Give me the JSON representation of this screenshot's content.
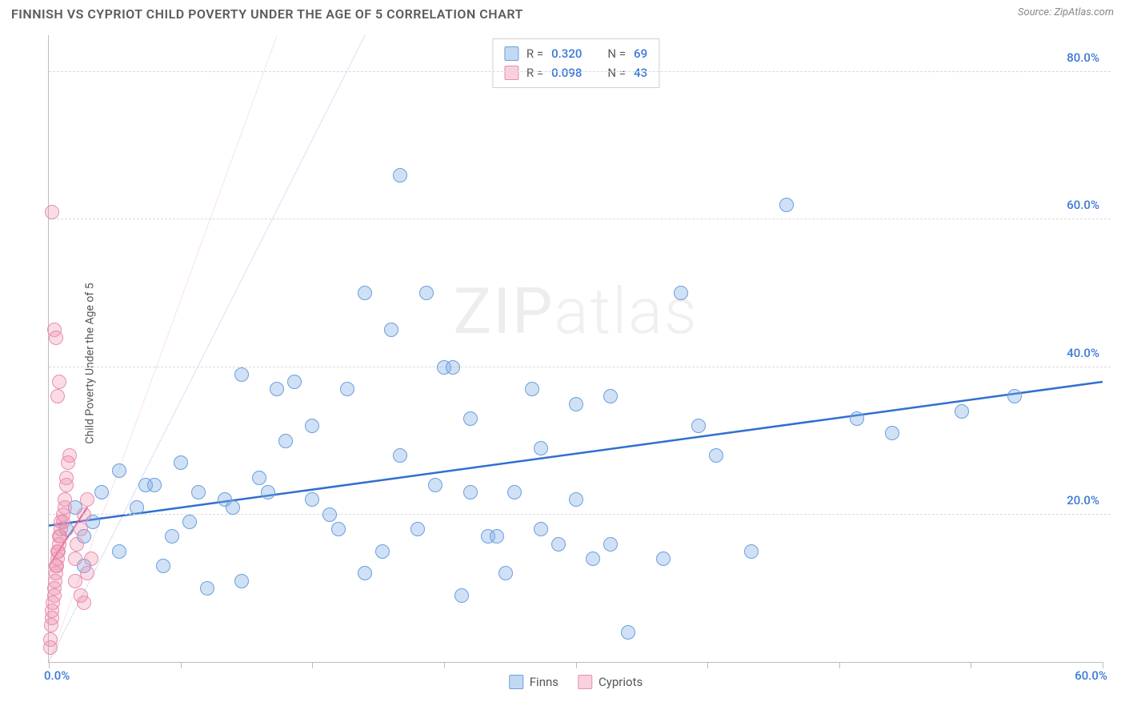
{
  "title": "FINNISH VS CYPRIOT CHILD POVERTY UNDER THE AGE OF 5 CORRELATION CHART",
  "source_label": "Source: ",
  "source_name": "ZipAtlas.com",
  "ylabel": "Child Poverty Under the Age of 5",
  "watermark_a": "ZIP",
  "watermark_b": "atlas",
  "chart": {
    "type": "scatter",
    "background_color": "#ffffff",
    "grid_color": "#d9d9d9",
    "axis_color": "#bdbdbd",
    "xlim": [
      0,
      60
    ],
    "ylim": [
      0,
      85
    ],
    "x_ticks": [
      0,
      7.5,
      15,
      22.5,
      30,
      37.5,
      45,
      52.5,
      60
    ],
    "y_gridlines": [
      20,
      40,
      60,
      80
    ],
    "x_axis_labels": {
      "min": "0.0%",
      "max": "60.0%"
    },
    "y_axis_labels": [
      "20.0%",
      "40.0%",
      "60.0%",
      "80.0%"
    ],
    "axis_label_color": "#3b78d8",
    "axis_label_fontsize": 15,
    "marker_size": 18,
    "series": [
      {
        "name": "Finns",
        "color_fill": "rgba(120,170,230,0.35)",
        "color_stroke": "#6b9ede",
        "r_label": "R = ",
        "r_value": "0.320",
        "n_label": "N = ",
        "n_value": "69",
        "trend": {
          "x1": 0,
          "y1": 18.5,
          "x2": 60,
          "y2": 38,
          "color": "#2f6fd0",
          "width": 2.5,
          "dash": "none"
        },
        "diag": {
          "x1": 0,
          "y1": 0,
          "x2": 18,
          "y2": 85,
          "color": "#a9c5ec",
          "width": 1,
          "dash": "5,5"
        },
        "points": [
          [
            1,
            18
          ],
          [
            1.5,
            21
          ],
          [
            2,
            13
          ],
          [
            2,
            17
          ],
          [
            2.5,
            19
          ],
          [
            3,
            23
          ],
          [
            4,
            15
          ],
          [
            4,
            26
          ],
          [
            5,
            21
          ],
          [
            5.5,
            24
          ],
          [
            6,
            24
          ],
          [
            6.5,
            13
          ],
          [
            7,
            17
          ],
          [
            7.5,
            27
          ],
          [
            8,
            19
          ],
          [
            8.5,
            23
          ],
          [
            9,
            10
          ],
          [
            10,
            22
          ],
          [
            10.5,
            21
          ],
          [
            11,
            11
          ],
          [
            11,
            39
          ],
          [
            12,
            25
          ],
          [
            12.5,
            23
          ],
          [
            13,
            37
          ],
          [
            13.5,
            30
          ],
          [
            14,
            38
          ],
          [
            15,
            22
          ],
          [
            15,
            32
          ],
          [
            16,
            20
          ],
          [
            16.5,
            18
          ],
          [
            17,
            37
          ],
          [
            18,
            12
          ],
          [
            18,
            50
          ],
          [
            19,
            15
          ],
          [
            19.5,
            45
          ],
          [
            20,
            28
          ],
          [
            20,
            66
          ],
          [
            21,
            18
          ],
          [
            21.5,
            50
          ],
          [
            22,
            24
          ],
          [
            22.5,
            40
          ],
          [
            23,
            40
          ],
          [
            23.5,
            9
          ],
          [
            24,
            23
          ],
          [
            24,
            33
          ],
          [
            25,
            17
          ],
          [
            25.5,
            17
          ],
          [
            26,
            12
          ],
          [
            26.5,
            23
          ],
          [
            27.5,
            37
          ],
          [
            28,
            18
          ],
          [
            28,
            29
          ],
          [
            29,
            16
          ],
          [
            30,
            22
          ],
          [
            30,
            35
          ],
          [
            31,
            14
          ],
          [
            32,
            36
          ],
          [
            32,
            16
          ],
          [
            33,
            4
          ],
          [
            35,
            14
          ],
          [
            36,
            50
          ],
          [
            37,
            32
          ],
          [
            38,
            28
          ],
          [
            40,
            15
          ],
          [
            42,
            62
          ],
          [
            46,
            33
          ],
          [
            48,
            31
          ],
          [
            52,
            34
          ],
          [
            55,
            36
          ]
        ]
      },
      {
        "name": "Cypriots",
        "color_fill": "rgba(240,140,170,0.30)",
        "color_stroke": "#e78fb0",
        "r_label": "R = ",
        "r_value": "0.098",
        "n_label": "N = ",
        "n_value": "43",
        "trend": {
          "x1": 0,
          "y1": 13,
          "x2": 2.2,
          "y2": 21,
          "color": "#e05a88",
          "width": 2,
          "dash": "none"
        },
        "diag": {
          "x1": 0,
          "y1": 0,
          "x2": 13,
          "y2": 85,
          "color": "#f3c4d4",
          "width": 1,
          "dash": "5,5"
        },
        "points": [
          [
            0.1,
            2
          ],
          [
            0.1,
            3
          ],
          [
            0.15,
            5
          ],
          [
            0.2,
            6
          ],
          [
            0.2,
            7
          ],
          [
            0.25,
            8
          ],
          [
            0.3,
            9
          ],
          [
            0.3,
            10
          ],
          [
            0.35,
            11
          ],
          [
            0.4,
            12
          ],
          [
            0.4,
            13
          ],
          [
            0.45,
            13
          ],
          [
            0.5,
            14
          ],
          [
            0.5,
            15
          ],
          [
            0.55,
            15
          ],
          [
            0.6,
            16
          ],
          [
            0.6,
            17
          ],
          [
            0.65,
            17
          ],
          [
            0.7,
            18
          ],
          [
            0.7,
            19
          ],
          [
            0.8,
            19
          ],
          [
            0.8,
            20
          ],
          [
            0.9,
            21
          ],
          [
            0.9,
            22
          ],
          [
            1.0,
            24
          ],
          [
            1.0,
            25
          ],
          [
            1.1,
            27
          ],
          [
            1.2,
            28
          ],
          [
            0.5,
            36
          ],
          [
            0.6,
            38
          ],
          [
            0.4,
            44
          ],
          [
            0.3,
            45
          ],
          [
            0.2,
            61
          ],
          [
            1.5,
            11
          ],
          [
            1.5,
            14
          ],
          [
            1.6,
            16
          ],
          [
            1.8,
            18
          ],
          [
            1.8,
            9
          ],
          [
            2.0,
            20
          ],
          [
            2.0,
            8
          ],
          [
            2.2,
            12
          ],
          [
            2.2,
            22
          ],
          [
            2.4,
            14
          ]
        ]
      }
    ],
    "legend_bottom": [
      "Finns",
      "Cypriots"
    ]
  }
}
